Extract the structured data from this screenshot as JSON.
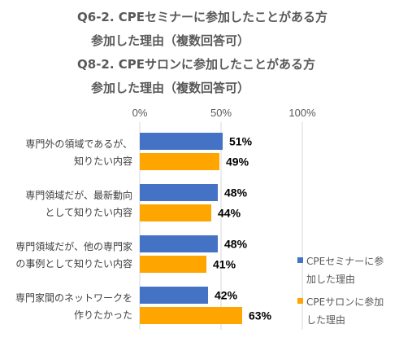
{
  "title_lines": [
    "Q6-2.  CPEセミナーに参加したことがある方",
    "参加した理由（複数回答可）",
    "Q8-2.  CPEサロンに参加したことがある方",
    "参加した理由（複数回答可）"
  ],
  "chart_data": {
    "type": "bar",
    "orientation": "horizontal",
    "xlim": [
      0,
      100
    ],
    "x_ticks": [
      "0%",
      "50%",
      "100%"
    ],
    "grid": true,
    "legend_position": "right",
    "categories": [
      [
        "専門外の領域であるが、",
        "知りたい内容"
      ],
      [
        "専門領域だが、最新動向",
        "として知りたい内容"
      ],
      [
        "専門領域だが、他の専門家",
        "の事例として知りたい内容"
      ],
      [
        "専門家間のネットワークを",
        "作りたかった"
      ]
    ],
    "series": [
      {
        "name": "CPEセミナーに参加した理由",
        "color": "#4472C4",
        "values": [
          51,
          48,
          48,
          42
        ],
        "labels": [
          "51%",
          "48%",
          "48%",
          "42%"
        ]
      },
      {
        "name": "CPEサロンに参加した理由",
        "color": "#FFA500",
        "values": [
          49,
          44,
          41,
          63
        ],
        "labels": [
          "49%",
          "44%",
          "41%",
          "63%"
        ]
      }
    ]
  },
  "legend": [
    {
      "label": "CPEセミナーに参加した理由",
      "color": "#4472C4"
    },
    {
      "label": "CPEサロンに参加した理由",
      "color": "#FFA500"
    }
  ]
}
